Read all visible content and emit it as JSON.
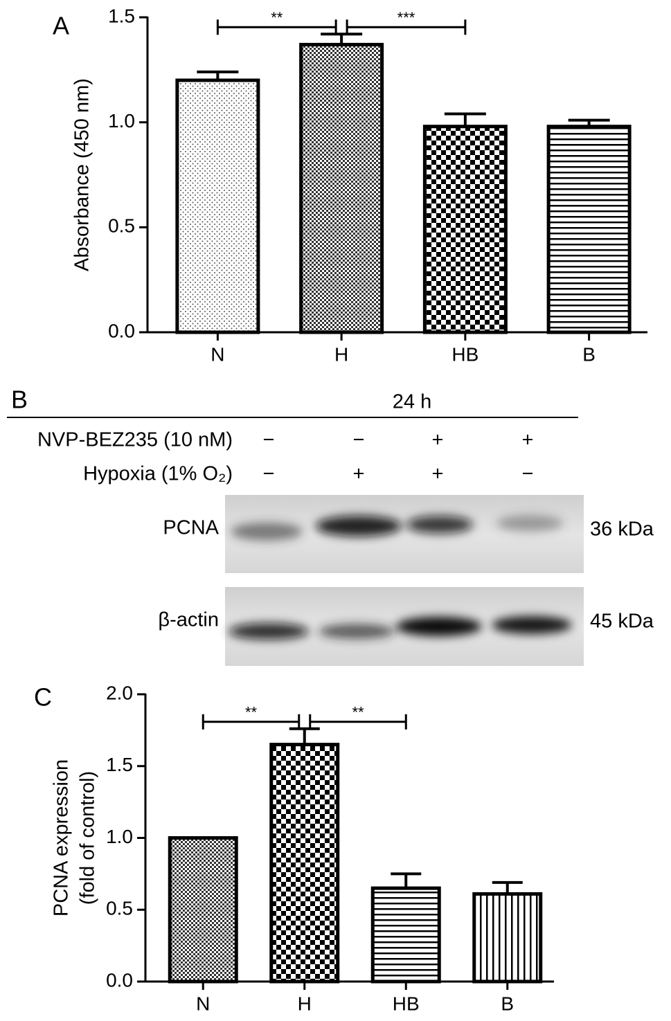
{
  "chart_data": [
    {
      "type": "bar",
      "panel": "A",
      "y_label": [
        "Absorbance (450 nm)"
      ],
      "categories": [
        "N",
        "H",
        "HB",
        "B"
      ],
      "values": [
        1.2,
        1.37,
        0.98,
        0.98
      ],
      "errors": [
        0.04,
        0.05,
        0.06,
        0.03
      ],
      "patterns": [
        "dots",
        "fine-checker",
        "checker",
        "hlines"
      ],
      "color": "#000000",
      "ylim": [
        0,
        1.5
      ],
      "yticks": [
        {
          "value": 0,
          "label": "0.0"
        },
        0.5,
        {
          "value": 1,
          "label": "1.0"
        },
        1.5
      ],
      "annotations": [
        {
          "text": "**",
          "between": [
            "N",
            "H"
          ]
        },
        {
          "text": "***",
          "between": [
            "H",
            "HB"
          ]
        }
      ]
    },
    {
      "type": "bar",
      "panel": "C",
      "y_label": [
        "PCNA expression",
        "(fold of control)"
      ],
      "categories": [
        "N",
        "H",
        "HB",
        "B"
      ],
      "values": [
        1.0,
        1.65,
        0.65,
        0.61
      ],
      "errors": [
        0,
        0.11,
        0.1,
        0.08
      ],
      "patterns": [
        "fine-checker",
        "checker",
        "hlines",
        "vlines"
      ],
      "color": "#000000",
      "ylim": [
        0,
        2
      ],
      "yticks": [
        {
          "value": 0,
          "label": "0.0"
        },
        0.5,
        {
          "value": 1,
          "label": "1.0"
        },
        1.5,
        {
          "value": 2,
          "label": "2.0"
        }
      ],
      "annotations": [
        {
          "text": "**",
          "between": [
            "N",
            "H"
          ]
        },
        {
          "text": "**",
          "between": [
            "H",
            "HB"
          ]
        }
      ]
    }
  ],
  "blot": {
    "panel": "B",
    "time": "24 h",
    "conditions": [
      {
        "label": "NVP-BEZ235 (10 nM)",
        "signs": [
          "−",
          "−",
          "+",
          "+"
        ]
      },
      {
        "label": "Hypoxia (1% O₂)",
        "signs": [
          "−",
          "+",
          "+",
          "−"
        ]
      }
    ],
    "bands": [
      {
        "protein": "PCNA",
        "size": "36 kDa"
      },
      {
        "protein": "β-actin",
        "size": "45 kDa"
      }
    ]
  }
}
